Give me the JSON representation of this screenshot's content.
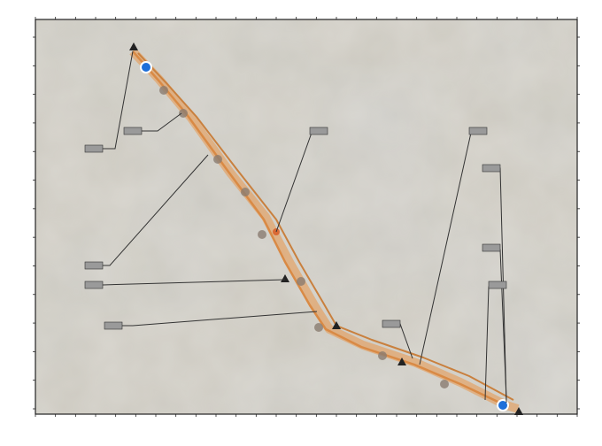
{
  "map": {
    "x_ticks": [
      "",
      "",
      "",
      "",
      "",
      "",
      "",
      "",
      "",
      "",
      "",
      "",
      "",
      "",
      "",
      "",
      "",
      "",
      "",
      "",
      "",
      "",
      "",
      "",
      "",
      "",
      "",
      ""
    ],
    "y_ticks": [
      "",
      "",
      "",
      "",
      "",
      "",
      "",
      "",
      "",
      "",
      "",
      "",
      "",
      ""
    ],
    "colors": {
      "frame": "#222222",
      "terrain_base": "#c9c6bd",
      "route_orange": "#f0a257",
      "route_dark": "#7a6a5a",
      "waypoint_blue": "#1e6fd9",
      "leader_line": "#333333",
      "label_box": "#9a9a9a"
    },
    "callouts": [
      {
        "id": "c1",
        "text": ""
      },
      {
        "id": "c2",
        "text": ""
      },
      {
        "id": "c3",
        "text": ""
      },
      {
        "id": "c4",
        "text": ""
      },
      {
        "id": "c5",
        "text": ""
      },
      {
        "id": "c6",
        "text": ""
      },
      {
        "id": "c7",
        "text": ""
      },
      {
        "id": "c8",
        "text": ""
      },
      {
        "id": "c9",
        "text": ""
      },
      {
        "id": "c10",
        "text": ""
      },
      {
        "id": "c11",
        "text": ""
      },
      {
        "id": "c12",
        "text": ""
      }
    ]
  }
}
